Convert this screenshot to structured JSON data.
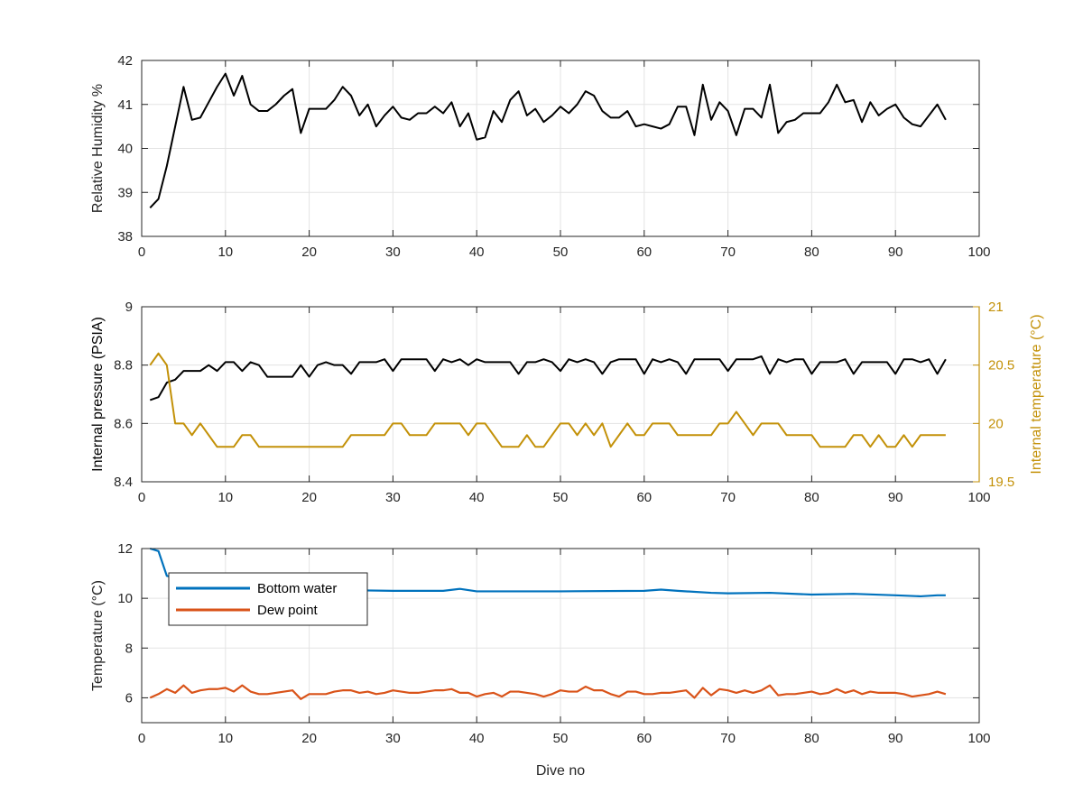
{
  "chart_data": [
    {
      "type": "line",
      "xlabel": "",
      "ylabel": "Relative Humidity %",
      "xlim": [
        0,
        100
      ],
      "ylim": [
        38,
        42
      ],
      "xticks": [
        0,
        10,
        20,
        30,
        40,
        50,
        60,
        70,
        80,
        90,
        100
      ],
      "yticks": [
        38,
        39,
        40,
        41,
        42
      ],
      "grid": true,
      "series": [
        {
          "name": "",
          "color": "#000000",
          "x": [
            1,
            2,
            3,
            4,
            5,
            6,
            7,
            8,
            9,
            10,
            11,
            12,
            13,
            14,
            15,
            16,
            17,
            18,
            19,
            20,
            21,
            22,
            23,
            24,
            25,
            26,
            27,
            28,
            29,
            30,
            31,
            32,
            33,
            34,
            35,
            36,
            37,
            38,
            39,
            40,
            41,
            42,
            43,
            44,
            45,
            46,
            47,
            48,
            49,
            50,
            51,
            52,
            53,
            54,
            55,
            56,
            57,
            58,
            59,
            60,
            61,
            62,
            63,
            64,
            65,
            66,
            67,
            68,
            69,
            70,
            71,
            72,
            73,
            74,
            75,
            76,
            77,
            78,
            79,
            80,
            81,
            82,
            83,
            84,
            85,
            86,
            87,
            88,
            89,
            90,
            91,
            92,
            93,
            94,
            95,
            96
          ],
          "values": [
            38.65,
            38.85,
            39.6,
            40.5,
            41.4,
            40.65,
            40.7,
            41.05,
            41.4,
            41.7,
            41.2,
            41.65,
            41,
            40.85,
            40.85,
            41,
            41.2,
            41.35,
            40.35,
            40.9,
            40.9,
            40.9,
            41.1,
            41.4,
            41.2,
            40.75,
            41,
            40.5,
            40.75,
            40.95,
            40.7,
            40.65,
            40.8,
            40.8,
            40.95,
            40.8,
            41.05,
            40.5,
            40.8,
            40.2,
            40.25,
            40.85,
            40.6,
            41.1,
            41.3,
            40.75,
            40.9,
            40.6,
            40.75,
            40.95,
            40.8,
            41,
            41.3,
            41.2,
            40.85,
            40.7,
            40.7,
            40.85,
            40.5,
            40.55,
            40.5,
            40.45,
            40.55,
            40.95,
            40.95,
            40.3,
            41.45,
            40.65,
            41.05,
            40.85,
            40.3,
            40.9,
            40.9,
            40.7,
            41.45,
            40.35,
            40.6,
            40.65,
            40.8,
            40.8,
            40.8,
            41.05,
            41.45,
            41.05,
            41.1,
            40.6,
            41.05,
            40.75,
            40.9,
            41,
            40.7,
            40.55,
            40.5,
            40.75,
            41,
            40.65
          ]
        }
      ]
    },
    {
      "type": "line",
      "xlabel": "",
      "ylabel": "Internal pressure (PSIA)",
      "y2label": "Internal temperature (°C)",
      "xlim": [
        0,
        100
      ],
      "ylim": [
        8.4,
        9
      ],
      "y2lim": [
        19.5,
        21
      ],
      "xticks": [
        0,
        10,
        20,
        30,
        40,
        50,
        60,
        70,
        80,
        90,
        100
      ],
      "yticks": [
        8.4,
        8.6,
        8.8,
        9
      ],
      "y2ticks": [
        19.5,
        20,
        20.5,
        21
      ],
      "y2tick_labels": [
        "19.5",
        "20",
        "20.5",
        "21"
      ],
      "y2color": "#C39108",
      "grid": true,
      "series": [
        {
          "name": "",
          "axis": "left",
          "color": "#000000",
          "x": [
            1,
            2,
            3,
            4,
            5,
            6,
            7,
            8,
            9,
            10,
            11,
            12,
            13,
            14,
            15,
            16,
            17,
            18,
            19,
            20,
            21,
            22,
            23,
            24,
            25,
            26,
            27,
            28,
            29,
            30,
            31,
            32,
            33,
            34,
            35,
            36,
            37,
            38,
            39,
            40,
            41,
            42,
            43,
            44,
            45,
            46,
            47,
            48,
            49,
            50,
            51,
            52,
            53,
            54,
            55,
            56,
            57,
            58,
            59,
            60,
            61,
            62,
            63,
            64,
            65,
            66,
            67,
            68,
            69,
            70,
            71,
            72,
            73,
            74,
            75,
            76,
            77,
            78,
            79,
            80,
            81,
            82,
            83,
            84,
            85,
            86,
            87,
            88,
            89,
            90,
            91,
            92,
            93,
            94,
            95,
            96
          ],
          "values": [
            8.68,
            8.69,
            8.74,
            8.75,
            8.78,
            8.78,
            8.78,
            8.8,
            8.78,
            8.81,
            8.81,
            8.78,
            8.81,
            8.8,
            8.76,
            8.76,
            8.76,
            8.76,
            8.8,
            8.76,
            8.8,
            8.81,
            8.8,
            8.8,
            8.77,
            8.81,
            8.81,
            8.81,
            8.82,
            8.78,
            8.82,
            8.82,
            8.82,
            8.82,
            8.78,
            8.82,
            8.81,
            8.82,
            8.8,
            8.82,
            8.81,
            8.81,
            8.81,
            8.81,
            8.77,
            8.81,
            8.81,
            8.82,
            8.81,
            8.78,
            8.82,
            8.81,
            8.82,
            8.81,
            8.77,
            8.81,
            8.82,
            8.82,
            8.82,
            8.77,
            8.82,
            8.81,
            8.82,
            8.81,
            8.77,
            8.82,
            8.82,
            8.82,
            8.82,
            8.78,
            8.82,
            8.82,
            8.82,
            8.83,
            8.77,
            8.82,
            8.81,
            8.82,
            8.82,
            8.77,
            8.81,
            8.81,
            8.81,
            8.82,
            8.77,
            8.81,
            8.81,
            8.81,
            8.81,
            8.77,
            8.82,
            8.82,
            8.81,
            8.82,
            8.77,
            8.82
          ]
        },
        {
          "name": "",
          "axis": "right",
          "color": "#C39108",
          "x": [
            1,
            2,
            3,
            4,
            5,
            6,
            7,
            8,
            9,
            10,
            11,
            12,
            13,
            14,
            15,
            16,
            17,
            18,
            19,
            20,
            21,
            22,
            23,
            24,
            25,
            26,
            27,
            28,
            29,
            30,
            31,
            32,
            33,
            34,
            35,
            36,
            37,
            38,
            39,
            40,
            41,
            42,
            43,
            44,
            45,
            46,
            47,
            48,
            49,
            50,
            51,
            52,
            53,
            54,
            55,
            56,
            57,
            58,
            59,
            60,
            61,
            62,
            63,
            64,
            65,
            66,
            67,
            68,
            69,
            70,
            71,
            72,
            73,
            74,
            75,
            76,
            77,
            78,
            79,
            80,
            81,
            82,
            83,
            84,
            85,
            86,
            87,
            88,
            89,
            90,
            91,
            92,
            93,
            94,
            95,
            96
          ],
          "values": [
            20.5,
            20.6,
            20.5,
            20,
            20,
            19.9,
            20,
            19.9,
            19.8,
            19.8,
            19.8,
            19.9,
            19.9,
            19.8,
            19.8,
            19.8,
            19.8,
            19.8,
            19.8,
            19.8,
            19.8,
            19.8,
            19.8,
            19.8,
            19.9,
            19.9,
            19.9,
            19.9,
            19.9,
            20,
            20,
            19.9,
            19.9,
            19.9,
            20,
            20,
            20,
            20,
            19.9,
            20,
            20,
            19.9,
            19.8,
            19.8,
            19.8,
            19.9,
            19.8,
            19.8,
            19.9,
            20,
            20,
            19.9,
            20,
            19.9,
            20,
            19.8,
            19.9,
            20,
            19.9,
            19.9,
            20,
            20,
            20,
            19.9,
            19.9,
            19.9,
            19.9,
            19.9,
            20,
            20,
            20.1,
            20,
            19.9,
            20,
            20,
            20,
            19.9,
            19.9,
            19.9,
            19.9,
            19.8,
            19.8,
            19.8,
            19.8,
            19.9,
            19.9,
            19.8,
            19.9,
            19.8,
            19.8,
            19.9,
            19.8,
            19.9,
            19.9,
            19.9,
            19.9
          ]
        }
      ]
    },
    {
      "type": "line",
      "xlabel": "Dive no",
      "ylabel": "Temperature (°C)",
      "xlim": [
        0,
        100
      ],
      "ylim": [
        5,
        12
      ],
      "xticks": [
        0,
        10,
        20,
        30,
        40,
        50,
        60,
        70,
        80,
        90,
        100
      ],
      "yticks": [
        6,
        8,
        10,
        12
      ],
      "grid": true,
      "legend_position": "top-left",
      "series": [
        {
          "name": "Bottom water",
          "color": "#0072BD",
          "x": [
            1,
            2,
            3,
            10,
            20,
            30,
            36,
            38,
            40,
            50,
            60,
            62,
            64,
            68,
            70,
            75,
            80,
            85,
            90,
            93,
            95,
            96
          ],
          "values": [
            12.6,
            11.9,
            10.9,
            10.4,
            10.35,
            10.3,
            10.3,
            10.38,
            10.28,
            10.28,
            10.3,
            10.35,
            10.3,
            10.22,
            10.2,
            10.22,
            10.15,
            10.18,
            10.12,
            10.08,
            10.12,
            10.12
          ]
        },
        {
          "name": "Dew point",
          "color": "#D95319",
          "x": [
            1,
            2,
            3,
            4,
            5,
            6,
            7,
            8,
            9,
            10,
            11,
            12,
            13,
            14,
            15,
            16,
            17,
            18,
            19,
            20,
            21,
            22,
            23,
            24,
            25,
            26,
            27,
            28,
            29,
            30,
            31,
            32,
            33,
            34,
            35,
            36,
            37,
            38,
            39,
            40,
            41,
            42,
            43,
            44,
            45,
            46,
            47,
            48,
            49,
            50,
            51,
            52,
            53,
            54,
            55,
            56,
            57,
            58,
            59,
            60,
            61,
            62,
            63,
            64,
            65,
            66,
            67,
            68,
            69,
            70,
            71,
            72,
            73,
            74,
            75,
            76,
            77,
            78,
            79,
            80,
            81,
            82,
            83,
            84,
            85,
            86,
            87,
            88,
            89,
            90,
            91,
            92,
            93,
            94,
            95,
            96
          ],
          "values": [
            6,
            6.15,
            6.35,
            6.2,
            6.5,
            6.2,
            6.3,
            6.35,
            6.35,
            6.4,
            6.25,
            6.5,
            6.25,
            6.15,
            6.15,
            6.2,
            6.25,
            6.3,
            5.95,
            6.15,
            6.15,
            6.15,
            6.25,
            6.3,
            6.3,
            6.2,
            6.25,
            6.15,
            6.2,
            6.3,
            6.25,
            6.2,
            6.2,
            6.25,
            6.3,
            6.3,
            6.35,
            6.2,
            6.2,
            6.05,
            6.15,
            6.2,
            6.05,
            6.25,
            6.25,
            6.2,
            6.15,
            6.05,
            6.15,
            6.3,
            6.25,
            6.25,
            6.45,
            6.3,
            6.3,
            6.15,
            6.05,
            6.25,
            6.25,
            6.15,
            6.15,
            6.2,
            6.2,
            6.25,
            6.3,
            6,
            6.4,
            6.1,
            6.35,
            6.3,
            6.2,
            6.3,
            6.2,
            6.3,
            6.5,
            6.1,
            6.15,
            6.15,
            6.2,
            6.25,
            6.15,
            6.2,
            6.35,
            6.2,
            6.3,
            6.15,
            6.25,
            6.2,
            6.2,
            6.2,
            6.15,
            6.05,
            6.1,
            6.15,
            6.25,
            6.15
          ]
        }
      ]
    }
  ]
}
